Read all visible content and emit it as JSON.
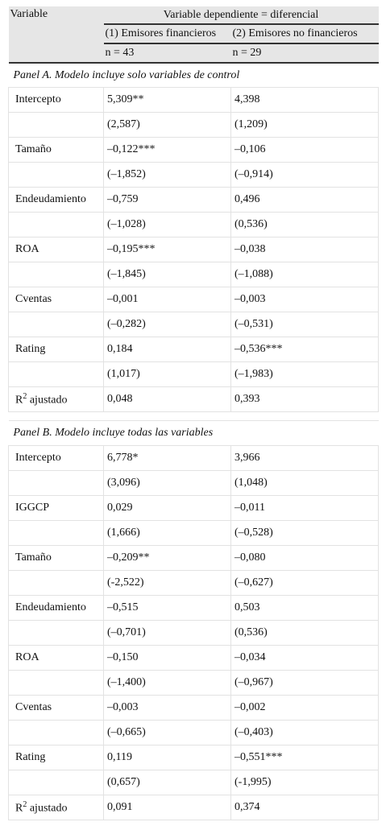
{
  "header": {
    "variable": "Variable",
    "dependent": "Variable dependiente = diferencial",
    "columns": [
      "(1) Emisores financieros",
      "(2) Emisores no financieros"
    ],
    "n": [
      "n = 43",
      "n = 29"
    ]
  },
  "panels": [
    {
      "title": "Panel A. Modelo incluye solo variables de control",
      "rows": [
        {
          "variable": "Intercepto",
          "values": [
            "5,309**",
            "4,398"
          ]
        },
        {
          "values": [
            "(2,587)",
            "(1,209)"
          ]
        },
        {
          "variable": "Tamaño",
          "values": [
            "–0,122***",
            "–0,106"
          ]
        },
        {
          "values": [
            "(–1,852)",
            "(–0,914)"
          ]
        },
        {
          "variable": "Endeudamiento",
          "values": [
            "–0,759",
            "0,496"
          ]
        },
        {
          "values": [
            "(–1,028)",
            "(0,536)"
          ]
        },
        {
          "variable": "ROA",
          "values": [
            "–0,195***",
            "–0,038"
          ]
        },
        {
          "values": [
            "(–1,845)",
            "(–1,088)"
          ]
        },
        {
          "variable": "Cventas",
          "values": [
            "–0,001",
            "–0,003"
          ]
        },
        {
          "values": [
            "(–0,282)",
            "(–0,531)"
          ]
        },
        {
          "variable": "Rating",
          "values": [
            "0,184",
            "–0,536***"
          ]
        },
        {
          "values": [
            "(1,017)",
            "(–1,983)"
          ]
        },
        {
          "variable_base": "R",
          "variable_sup": "2",
          "variable_rest": " ajustado",
          "values": [
            "0,048",
            "0,393"
          ]
        }
      ]
    },
    {
      "title": "Panel B. Modelo incluye todas las variables",
      "rows": [
        {
          "variable": "Intercepto",
          "values": [
            "6,778*",
            "3,966"
          ]
        },
        {
          "values": [
            "(3,096)",
            "(1,048)"
          ]
        },
        {
          "variable": "IGGCP",
          "values": [
            "0,029",
            "–0,011"
          ]
        },
        {
          "values": [
            "(1,666)",
            "(–0,528)"
          ]
        },
        {
          "variable": "Tamaño",
          "values": [
            "–0,209**",
            "–0,080"
          ]
        },
        {
          "values": [
            "(-2,522)",
            "(–0,627)"
          ]
        },
        {
          "variable": "Endeudamiento",
          "values": [
            "–0,515",
            "0,503"
          ]
        },
        {
          "values": [
            "(–0,701)",
            "(0,536)"
          ]
        },
        {
          "variable": "ROA",
          "values": [
            "–0,150",
            "–0,034"
          ]
        },
        {
          "values": [
            "(–1,400)",
            "(–0,967)"
          ]
        },
        {
          "variable": "Cventas",
          "values": [
            "–0,003",
            "–0,002"
          ]
        },
        {
          "values": [
            "(–0,665)",
            "(–0,403)"
          ]
        },
        {
          "variable": "Rating",
          "values": [
            "0,119",
            "–0,551***"
          ]
        },
        {
          "values": [
            "(0,657)",
            "(-1,995)"
          ]
        },
        {
          "variable_base": "R",
          "variable_sup": "2",
          "variable_rest": " ajustado",
          "values": [
            "0,091",
            "0,374"
          ]
        }
      ]
    }
  ]
}
